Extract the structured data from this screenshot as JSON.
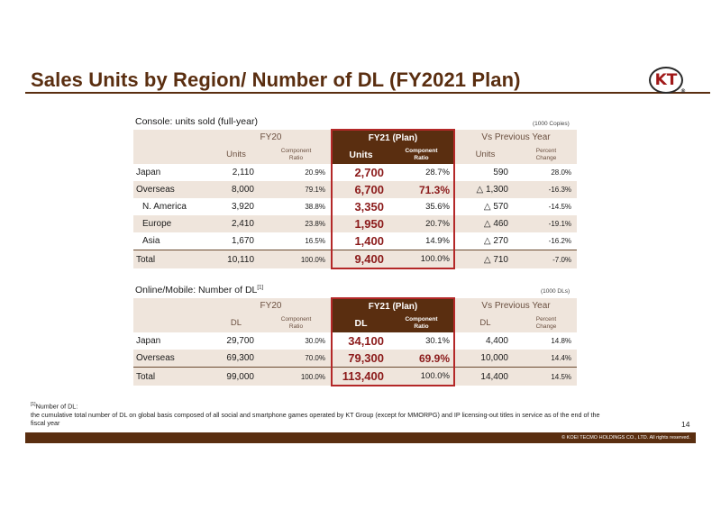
{
  "title": "Sales Units by Region/ Number of DL (FY2021 Plan)",
  "logo": {
    "text": "KT",
    "mark": "®"
  },
  "console": {
    "heading": "Console: units sold (full-year)",
    "unit_note": "(1000 Copies)",
    "groups": {
      "fy20": "FY20",
      "fy21": "FY21 (Plan)",
      "vs": "Vs Previous Year"
    },
    "subheads": {
      "units": "Units",
      "ratio_1": "Component",
      "ratio_2": "Ratio",
      "pct_1": "Percent",
      "pct_2": "Change"
    },
    "rows": [
      {
        "name": "Japan",
        "fy20": "2,110",
        "fy20_ratio": "20.9%",
        "fy21": "2,700",
        "fy21_ratio": "28.7%",
        "vs": "590",
        "change": "28.0%"
      },
      {
        "name": "Overseas",
        "fy20": "8,000",
        "fy20_ratio": "79.1%",
        "fy21": "6,700",
        "fy21_ratio": "71.3%",
        "vs": "△ 1,300",
        "change": "-16.3%"
      },
      {
        "name": "N. America",
        "fy20": "3,920",
        "fy20_ratio": "38.8%",
        "fy21": "3,350",
        "fy21_ratio": "35.6%",
        "vs": "△ 570",
        "change": "-14.5%"
      },
      {
        "name": "Europe",
        "fy20": "2,410",
        "fy20_ratio": "23.8%",
        "fy21": "1,950",
        "fy21_ratio": "20.7%",
        "vs": "△ 460",
        "change": "-19.1%"
      },
      {
        "name": "Asia",
        "fy20": "1,670",
        "fy20_ratio": "16.5%",
        "fy21": "1,400",
        "fy21_ratio": "14.9%",
        "vs": "△ 270",
        "change": "-16.2%"
      },
      {
        "name": "Total",
        "fy20": "10,110",
        "fy20_ratio": "100.0%",
        "fy21": "9,400",
        "fy21_ratio": "100.0%",
        "vs": "△ 710",
        "change": "-7.0%"
      }
    ]
  },
  "online": {
    "heading": "Online/Mobile: Number of DL",
    "heading_sup": "[1]",
    "unit_note": "(1000 DLs)",
    "groups": {
      "fy20": "FY20",
      "fy21": "FY21 (Plan)",
      "vs": "Vs Previous Year"
    },
    "subheads": {
      "units": "DL",
      "ratio_1": "Component",
      "ratio_2": "Ratio",
      "pct_1": "Percent",
      "pct_2": "Change"
    },
    "rows": [
      {
        "name": "Japan",
        "fy20": "29,700",
        "fy20_ratio": "30.0%",
        "fy21": "34,100",
        "fy21_ratio": "30.1%",
        "vs": "4,400",
        "change": "14.8%"
      },
      {
        "name": "Overseas",
        "fy20": "69,300",
        "fy20_ratio": "70.0%",
        "fy21": "79,300",
        "fy21_ratio": "69.9%",
        "vs": "10,000",
        "change": "14.4%"
      },
      {
        "name": "Total",
        "fy20": "99,000",
        "fy20_ratio": "100.0%",
        "fy21": "113,400",
        "fy21_ratio": "100.0%",
        "vs": "14,400",
        "change": "14.5%"
      }
    ]
  },
  "footnote": {
    "marker": "[1]",
    "line1": "Number of DL:",
    "line2": "the cumulative total number of DL on global basis composed of all social and smartphone games operated by KT Group (except for MMORPG) and IP licensing-out titles in service as of the end of the",
    "line3": "fiscal year"
  },
  "page_number": "14",
  "copyright": "© KOEI TECMO HOLDINGS CO., LTD. All rights reserved."
}
